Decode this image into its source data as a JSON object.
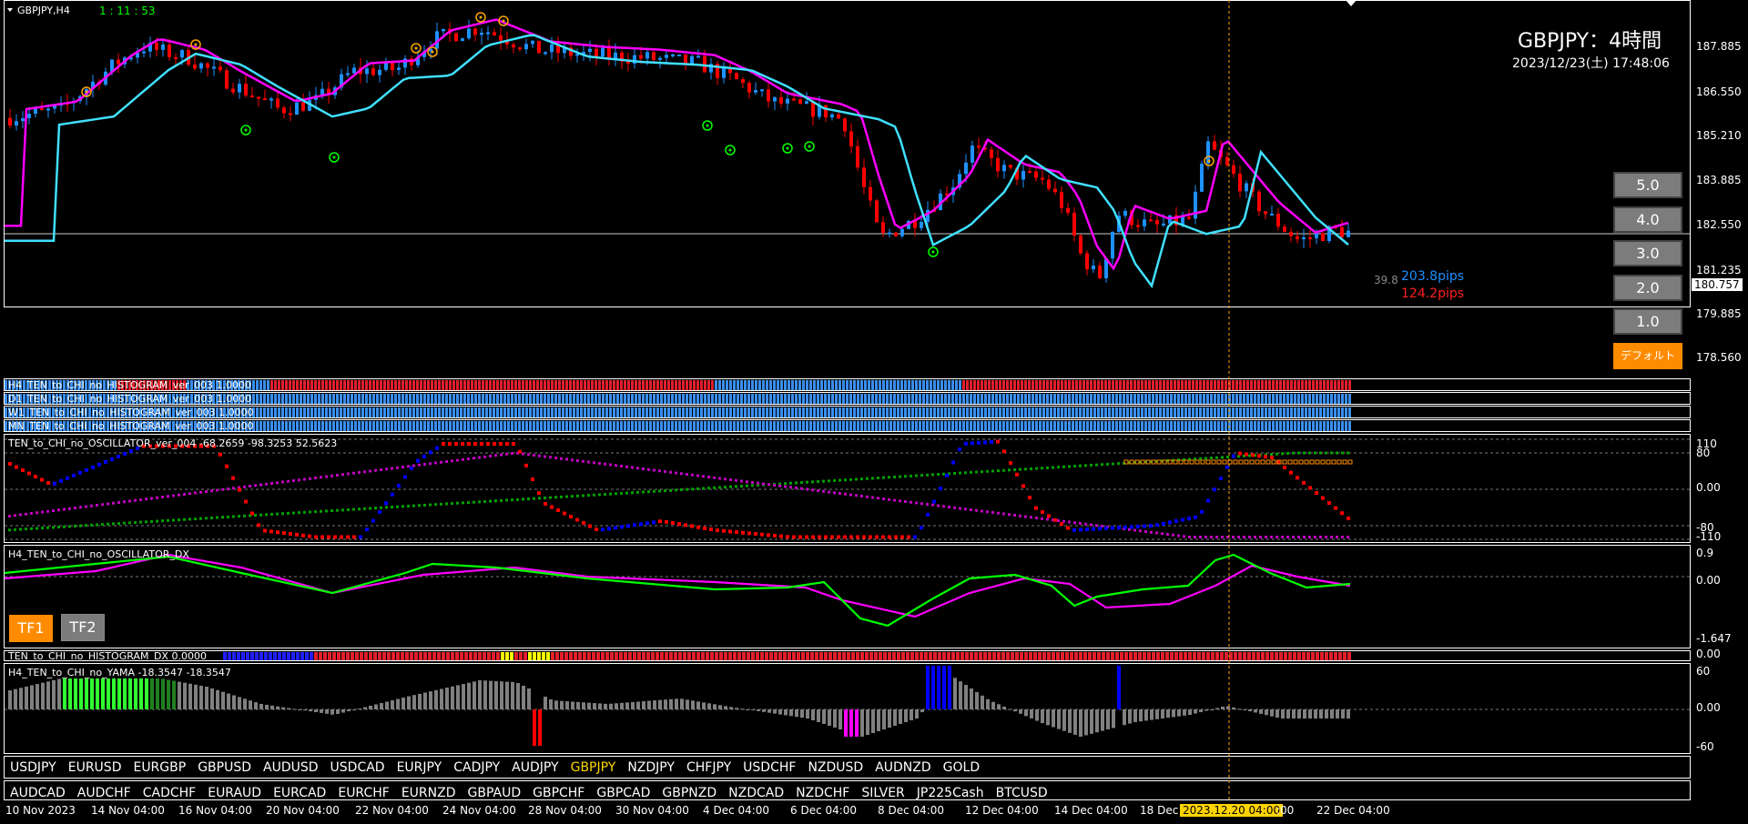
{
  "main": {
    "symbol": "GBPJPY,H4",
    "countdown": "1 : 11 : 53",
    "title": "GBPJPY：4時間",
    "datetime": "2023/12/23(土) 17:48:06",
    "price_ticks": [
      "187.885",
      "186.550",
      "185.210",
      "183.885",
      "182.550",
      "181.235",
      "180.757",
      "179.885",
      "178.560"
    ],
    "spread_value": "39.8",
    "pips_up": "203.8pips",
    "pips_down": "124.2pips"
  },
  "zoom_buttons": [
    "5.0",
    "4.0",
    "3.0",
    "2.0",
    "1.0"
  ],
  "default_button": "デフォルト",
  "histograms": [
    {
      "label": "H4_TEN_to_CHI_no_HISTOGRAM_ver_003 1.0000"
    },
    {
      "label": "D1_TEN_to_CHI_no_HISTOGRAM_ver_003 1.0000"
    },
    {
      "label": "W1_TEN_to_CHI_no_HISTOGRAM_ver_003 1.0000"
    },
    {
      "label": "MN_TEN_to_CHI_no_HISTOGRAM_ver_003 1.0000"
    }
  ],
  "osc": {
    "label": "TEN_to_CHI_no_OSCILLATOR_ver_004 -68.2659 -98.3253 52.5623",
    "ticks": [
      "110",
      "80",
      "0.00",
      "-80",
      "-110"
    ]
  },
  "dx": {
    "label": "H4_TEN_to_CHI_no_OSCILLATOR_DX",
    "ticks": [
      "0.9",
      "0.00",
      "-1.647"
    ],
    "tf1": "TF1",
    "tf2": "TF2"
  },
  "hist_dx": {
    "label": "TEN_to_CHI_no_HISTOGRAM_DX 0.0000",
    "tick": "0.00"
  },
  "yama": {
    "label": "H4_TEN_to_CHI_no_YAMA -18.3547 -18.3547",
    "ticks": [
      "60",
      "0.00",
      "-60"
    ]
  },
  "symbols_row1": [
    "USDJPY",
    "EURUSD",
    "EURGBP",
    "GBPUSD",
    "AUDUSD",
    "USDCAD",
    "EURJPY",
    "CADJPY",
    "AUDJPY",
    "GBPJPY",
    "NZDJPY",
    "CHFJPY",
    "USDCHF",
    "NZDUSD",
    "AUDNZD",
    "GOLD"
  ],
  "symbols_row2": [
    "AUDCAD",
    "AUDCHF",
    "CADCHF",
    "EURAUD",
    "EURCAD",
    "EURCHF",
    "EURNZD",
    "GBPAUD",
    "GBPCHF",
    "GBPCAD",
    "GBPNZD",
    "NZDCAD",
    "NZDCHF",
    "SILVER",
    "JP225Cash",
    "BTCUSD"
  ],
  "selected_symbol": "GBPJPY",
  "dates": [
    "10 Nov 2023",
    "14 Nov 04:00",
    "16 Nov 04:00",
    "20 Nov 04:00",
    "22 Nov 04:00",
    "24 Nov 04:00",
    "28 Nov 04:00",
    "30 Nov 04:00",
    "4 Dec 04:00",
    "6 Dec 04:00",
    "8 Dec 04:00",
    "12 Dec 04:00",
    "14 Dec 04:00",
    "18 Dec",
    "22 Dec 04:00"
  ],
  "cursor_date": "2023.12.20 04:00",
  "cursor_date_suffix": ":00",
  "colors": {
    "up": "#1e90ff",
    "down": "#ff0000",
    "ma1": "#ff00ff",
    "ma2": "#00ffff",
    "cursor": "#ffa500"
  }
}
